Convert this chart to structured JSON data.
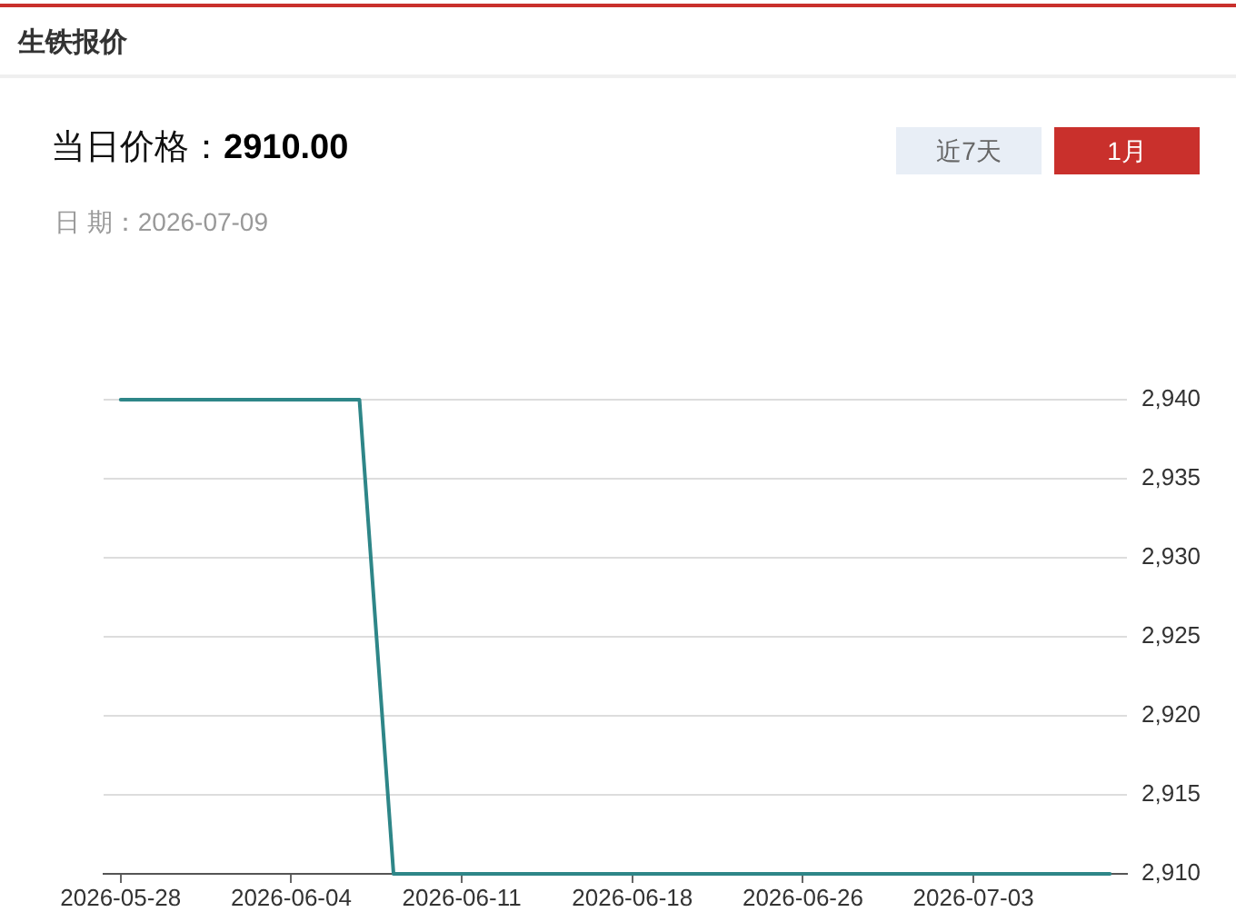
{
  "chart_data": {
    "type": "line",
    "title": "生铁报价",
    "subtitle": "当日价格：2910.00",
    "annotations": [
      "日 期：2026-07-09",
      "近7天",
      "1月"
    ],
    "categories": [
      "2026-05-28",
      null,
      null,
      null,
      null,
      "2026-06-04",
      null,
      null,
      null,
      null,
      "2026-06-11",
      null,
      null,
      null,
      null,
      "2026-06-18",
      null,
      null,
      null,
      null,
      "2026-06-26",
      null,
      null,
      null,
      null,
      "2026-07-03",
      null,
      null,
      null,
      null
    ],
    "series": [
      {
        "color": "#2e8688",
        "values": [
          2940,
          2940,
          2940,
          2940,
          2940,
          2940,
          2940,
          2940,
          2910,
          2910,
          2910,
          2910,
          2910,
          2910,
          2910,
          2910,
          2910,
          2910,
          2910,
          2910,
          2910,
          2910,
          2910,
          2910,
          2910,
          2910,
          2910,
          2910,
          2910,
          2910
        ]
      }
    ],
    "ylim": [
      2910,
      2940
    ],
    "yticks": [
      {
        "value": 2910,
        "label": "2,910"
      },
      {
        "value": 2915,
        "label": "2,915"
      },
      {
        "value": 2920,
        "label": "2,920"
      },
      {
        "value": 2925,
        "label": "2,925"
      },
      {
        "value": 2930,
        "label": "2,930"
      },
      {
        "value": 2935,
        "label": "2,935"
      },
      {
        "value": 2940,
        "label": "2,940"
      }
    ],
    "grid": "y",
    "legend": false,
    "marker": "none",
    "line_style": "solid"
  }
}
